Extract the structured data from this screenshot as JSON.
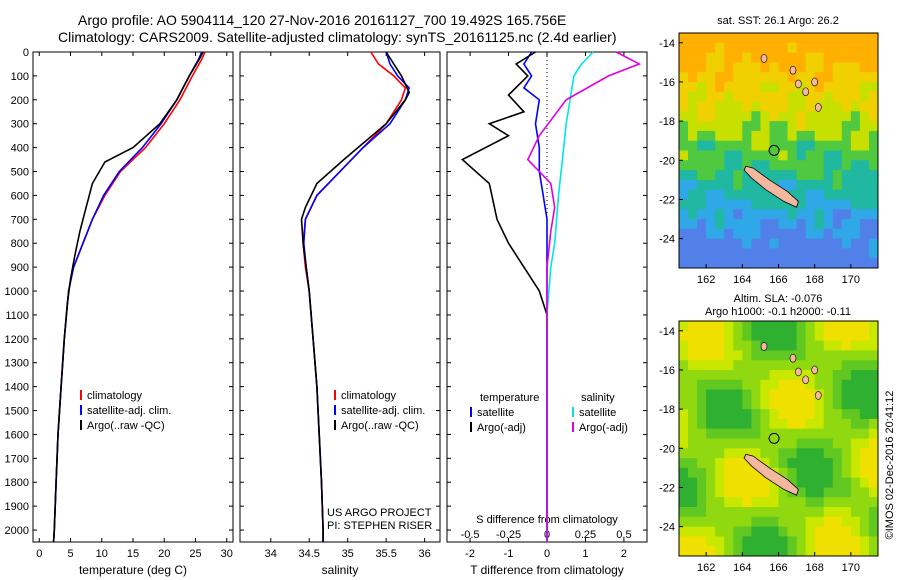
{
  "header": {
    "line1": "Argo profile: AO 5904114_120 27-Nov-2016 20161127_700 19.492S 165.756E",
    "line2": "Climatology: CARS2009. Satellite-adjusted climatology: synTS_20161125.nc (2.4d earlier)"
  },
  "colors": {
    "climatology": "#ff0000",
    "satellite": "#0000ff",
    "argo": "#000000",
    "sal_satellite": "#00e5e5",
    "sal_argo": "#e000e0"
  },
  "depth_axis": {
    "range": [
      0,
      2050
    ],
    "ticks": [
      0,
      100,
      200,
      300,
      400,
      500,
      600,
      700,
      800,
      900,
      1000,
      1100,
      1200,
      1300,
      1400,
      1500,
      1600,
      1700,
      1800,
      1900,
      2000
    ]
  },
  "legend": {
    "climatology": "climatology",
    "satellite": "satellite-adj. clim.",
    "argo": "Argo(..raw -QC)"
  },
  "project": {
    "line1": "US ARGO PROJECT",
    "line2": "PI: STEPHEN RISER"
  },
  "diff_legend": {
    "temperature": "temperature",
    "salinity": "salinity",
    "satellite": "satellite",
    "argo": "Argo(-adj)"
  },
  "maps": {
    "sst_title": "sat. SST: 26.1  Argo: 26.2",
    "sla_title1": "Altim. SLA: -0.076",
    "sla_title2": "Argo h1000: -0.1 h2000: -0.11",
    "lat_ticks": [
      "-14",
      "-16",
      "-18",
      "-20",
      "-22",
      "-24"
    ],
    "lon_ticks": [
      "162",
      "164",
      "166",
      "168",
      "170"
    ],
    "lat_vals": [
      -14,
      -16,
      -18,
      -20,
      -22,
      -24
    ],
    "lon_vals": [
      162,
      164,
      166,
      168,
      170
    ],
    "lat_range": [
      -25.5,
      -13.5
    ],
    "lon_range": [
      160.5,
      171.5
    ]
  },
  "timestamp": "©IMOS 02-Dec-2016 20:41:12",
  "chart_data": [
    {
      "type": "line",
      "xlabel": "temperature (deg C)",
      "xlim": [
        -1,
        31
      ],
      "xticks": [
        0,
        5,
        10,
        15,
        20,
        25,
        30
      ],
      "ylim": [
        2050,
        0
      ],
      "series": [
        {
          "name": "climatology",
          "points": [
            [
              26.5,
              0
            ],
            [
              26,
              30
            ],
            [
              24.5,
              100
            ],
            [
              22.5,
              200
            ],
            [
              20,
              300
            ],
            [
              17,
              400
            ],
            [
              13,
              500
            ],
            [
              10.5,
              600
            ],
            [
              8.5,
              700
            ],
            [
              7,
              800
            ],
            [
              5.5,
              900
            ],
            [
              4.7,
              1000
            ],
            [
              4,
              1200
            ],
            [
              3.5,
              1400
            ],
            [
              3,
              1600
            ],
            [
              2.7,
              1800
            ],
            [
              2.4,
              2000
            ],
            [
              2.3,
              2050
            ]
          ]
        },
        {
          "name": "satellite-adj. clim.",
          "points": [
            [
              26,
              0
            ],
            [
              25.5,
              30
            ],
            [
              24,
              100
            ],
            [
              22,
              200
            ],
            [
              19.5,
              300
            ],
            [
              16.5,
              400
            ],
            [
              12.8,
              500
            ],
            [
              10.3,
              600
            ],
            [
              8.5,
              700
            ],
            [
              7,
              800
            ],
            [
              5.5,
              900
            ],
            [
              4.7,
              1000
            ],
            [
              4,
              1200
            ],
            [
              3.5,
              1400
            ],
            [
              3,
              1600
            ],
            [
              2.7,
              1800
            ],
            [
              2.4,
              2000
            ],
            [
              2.3,
              2050
            ]
          ]
        },
        {
          "name": "Argo(..raw -QC)",
          "points": [
            [
              26.2,
              0
            ],
            [
              25.6,
              30
            ],
            [
              24,
              100
            ],
            [
              22,
              200
            ],
            [
              19.3,
              300
            ],
            [
              15,
              400
            ],
            [
              10.5,
              460
            ],
            [
              8.5,
              550
            ],
            [
              7.5,
              650
            ],
            [
              6.5,
              750
            ],
            [
              5.7,
              850
            ],
            [
              5,
              950
            ],
            [
              4.5,
              1050
            ],
            [
              4,
              1200
            ],
            [
              3.5,
              1400
            ],
            [
              3,
              1600
            ],
            [
              2.7,
              1800
            ],
            [
              2.4,
              2000
            ],
            [
              2.3,
              2050
            ]
          ]
        }
      ]
    },
    {
      "type": "line",
      "xlabel": "salinity",
      "xlim": [
        33.6,
        36.2
      ],
      "xticks": [
        34,
        34.5,
        35,
        35.5,
        36
      ],
      "ylim": [
        2050,
        0
      ],
      "series": [
        {
          "name": "climatology",
          "points": [
            [
              35.3,
              0
            ],
            [
              35.4,
              50
            ],
            [
              35.6,
              100
            ],
            [
              35.75,
              150
            ],
            [
              35.7,
              200
            ],
            [
              35.5,
              300
            ],
            [
              35.2,
              400
            ],
            [
              34.9,
              500
            ],
            [
              34.6,
              600
            ],
            [
              34.45,
              700
            ],
            [
              34.42,
              800
            ],
            [
              34.45,
              900
            ],
            [
              34.5,
              1000
            ],
            [
              34.55,
              1200
            ],
            [
              34.6,
              1400
            ],
            [
              34.63,
              1600
            ],
            [
              34.66,
              1800
            ],
            [
              34.68,
              2000
            ],
            [
              34.68,
              2050
            ]
          ]
        },
        {
          "name": "satellite-adj. clim.",
          "points": [
            [
              35.5,
              0
            ],
            [
              35.55,
              50
            ],
            [
              35.65,
              100
            ],
            [
              35.8,
              150
            ],
            [
              35.75,
              200
            ],
            [
              35.55,
              300
            ],
            [
              35.2,
              400
            ],
            [
              34.9,
              500
            ],
            [
              34.6,
              600
            ],
            [
              34.45,
              700
            ],
            [
              34.43,
              800
            ],
            [
              34.46,
              900
            ],
            [
              34.5,
              1000
            ],
            [
              34.55,
              1200
            ],
            [
              34.6,
              1400
            ],
            [
              34.63,
              1600
            ],
            [
              34.66,
              1800
            ],
            [
              34.68,
              2000
            ],
            [
              34.68,
              2050
            ]
          ]
        },
        {
          "name": "Argo(..raw -QC)",
          "points": [
            [
              35.5,
              0
            ],
            [
              35.6,
              50
            ],
            [
              35.7,
              100
            ],
            [
              35.8,
              170
            ],
            [
              35.75,
              200
            ],
            [
              35.5,
              300
            ],
            [
              34.95,
              450
            ],
            [
              34.6,
              550
            ],
            [
              34.45,
              650
            ],
            [
              34.4,
              700
            ],
            [
              34.42,
              800
            ],
            [
              34.46,
              900
            ],
            [
              34.5,
              1000
            ],
            [
              34.55,
              1200
            ],
            [
              34.6,
              1400
            ],
            [
              34.63,
              1600
            ],
            [
              34.66,
              1800
            ],
            [
              34.68,
              2000
            ],
            [
              34.68,
              2050
            ]
          ]
        }
      ]
    },
    {
      "type": "line",
      "xlabel": "T difference from climatology",
      "top_label": "S difference from climatology",
      "xlim": [
        -2.6,
        2.6
      ],
      "xticks": [
        -2,
        -1,
        0,
        1,
        2
      ],
      "top_ticks": [
        "-0.5",
        "-0.25",
        "0",
        "0.25",
        "0.5"
      ],
      "top_tick_vals": [
        -0.5,
        -0.25,
        0,
        0.25,
        0.5
      ],
      "top_scale": 4,
      "ylim": [
        2050,
        0
      ],
      "series": [
        {
          "name": "temperature satellite",
          "points": [
            [
              -0.4,
              0
            ],
            [
              -0.6,
              50
            ],
            [
              -0.4,
              100
            ],
            [
              -0.6,
              150
            ],
            [
              -0.2,
              200
            ],
            [
              -0.3,
              300
            ],
            [
              -0.2,
              400
            ],
            [
              -0.2,
              500
            ],
            [
              -0.1,
              600
            ],
            [
              0,
              700
            ],
            [
              0,
              2050
            ]
          ]
        },
        {
          "name": "temperature Argo(-adj)",
          "points": [
            [
              -0.3,
              0
            ],
            [
              -0.8,
              50
            ],
            [
              -0.5,
              100
            ],
            [
              -1,
              180
            ],
            [
              -0.6,
              250
            ],
            [
              -1.5,
              300
            ],
            [
              -1,
              350
            ],
            [
              -2.2,
              450
            ],
            [
              -1.5,
              550
            ],
            [
              -1.3,
              700
            ],
            [
              -1,
              800
            ],
            [
              -0.6,
              900
            ],
            [
              -0.2,
              1000
            ],
            [
              0,
              1100
            ],
            [
              0,
              2050
            ]
          ]
        },
        {
          "name": "salinity satellite",
          "points": [
            [
              1.2,
              0
            ],
            [
              0.9,
              50
            ],
            [
              0.7,
              100
            ],
            [
              0.6,
              200
            ],
            [
              0.5,
              300
            ],
            [
              0.4,
              450
            ],
            [
              0.3,
              600
            ],
            [
              0.2,
              800
            ],
            [
              0.1,
              900
            ],
            [
              0,
              1100
            ],
            [
              0,
              2050
            ]
          ]
        },
        {
          "name": "salinity Argo(-adj)",
          "points": [
            [
              1.8,
              0
            ],
            [
              2.4,
              50
            ],
            [
              1.6,
              100
            ],
            [
              0.5,
              200
            ],
            [
              -0.2,
              350
            ],
            [
              -0.5,
              450
            ],
            [
              0.1,
              550
            ],
            [
              0.2,
              650
            ],
            [
              0.1,
              750
            ],
            [
              0,
              900
            ],
            [
              0,
              2050
            ]
          ]
        }
      ]
    }
  ]
}
